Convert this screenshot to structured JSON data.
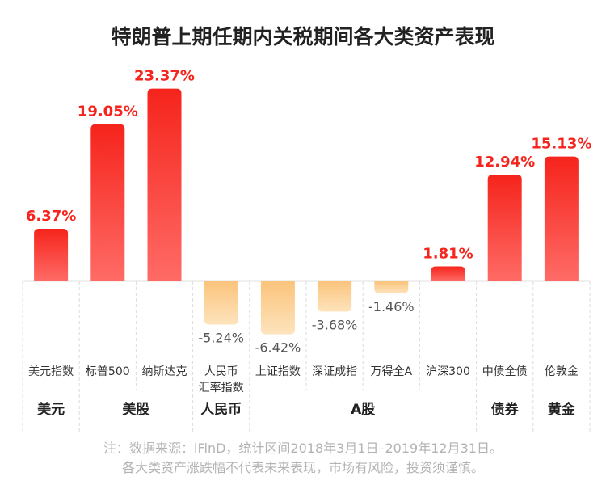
{
  "chart_data": {
    "type": "bar",
    "title": "特朗普上期任期内关税期间各大类资产表现",
    "categories": [
      "美元指数",
      "标普500",
      "纳斯达克",
      "人民币\n汇率指数",
      "上证指数",
      "深证成指",
      "万得全A",
      "沪深300",
      "中债全债",
      "伦敦金"
    ],
    "values": [
      6.37,
      19.05,
      23.37,
      -5.24,
      -6.42,
      -3.68,
      -1.46,
      1.81,
      12.94,
      15.13
    ],
    "data_labels": [
      "6.37%",
      "19.05%",
      "23.37%",
      "-5.24%",
      "-6.42%",
      "-3.68%",
      "-1.46%",
      "1.81%",
      "12.94%",
      "15.13%"
    ],
    "groups": [
      {
        "label": "美元",
        "count": 1
      },
      {
        "label": "美股",
        "count": 2
      },
      {
        "label": "人民币",
        "count": 1
      },
      {
        "label": "A股",
        "count": 4
      },
      {
        "label": "债券",
        "count": 1
      },
      {
        "label": "黄金",
        "count": 1
      }
    ],
    "unit": "%",
    "grid": false,
    "colors": {
      "positive_top": "#f5241c",
      "positive_bottom": "#ff6b66",
      "negative_top": "#fbc47c",
      "negative_bottom": "#fde3bd",
      "positive_label": "#f5241c",
      "negative_label": "#555555"
    }
  },
  "footnote": {
    "line1": "注：数据来源：iFinD，统计区间2018年3月1日–2019年12月31日。",
    "line2": "各大类资产涨跌幅不代表未来表现，市场有风险，投资须谨慎。"
  }
}
